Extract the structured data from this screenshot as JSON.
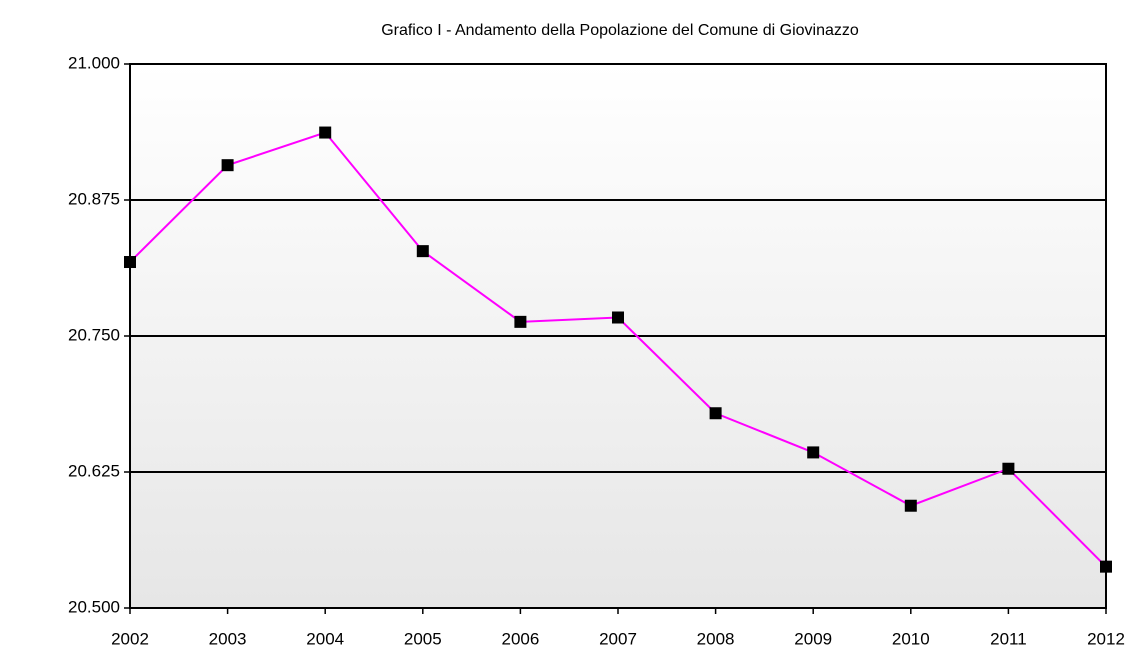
{
  "chart_data": {
    "type": "line",
    "title": "Grafico I - Andamento della Popolazione del Comune di Giovinazzo",
    "x": [
      2002,
      2003,
      2004,
      2005,
      2006,
      2007,
      2008,
      2009,
      2010,
      2011,
      2012
    ],
    "series": [
      {
        "name": "Popolazione",
        "color": "#ff00ff",
        "marker_color": "#000000",
        "values": [
          20818,
          20907,
          20937,
          20828,
          20763,
          20767,
          20679,
          20643,
          20594,
          20628,
          20538
        ]
      }
    ],
    "xlim": [
      2002,
      2012
    ],
    "xticks": [
      2002,
      2003,
      2004,
      2005,
      2006,
      2007,
      2008,
      2009,
      2010,
      2011,
      2012
    ],
    "ylim": [
      20500,
      21000
    ],
    "yticks": [
      {
        "value": 20500,
        "label": "20.500"
      },
      {
        "value": 20625,
        "label": "20.625"
      },
      {
        "value": 20750,
        "label": "20.750"
      },
      {
        "value": 20875,
        "label": "20.875"
      },
      {
        "value": 21000,
        "label": "21.000"
      }
    ],
    "grid": true
  }
}
